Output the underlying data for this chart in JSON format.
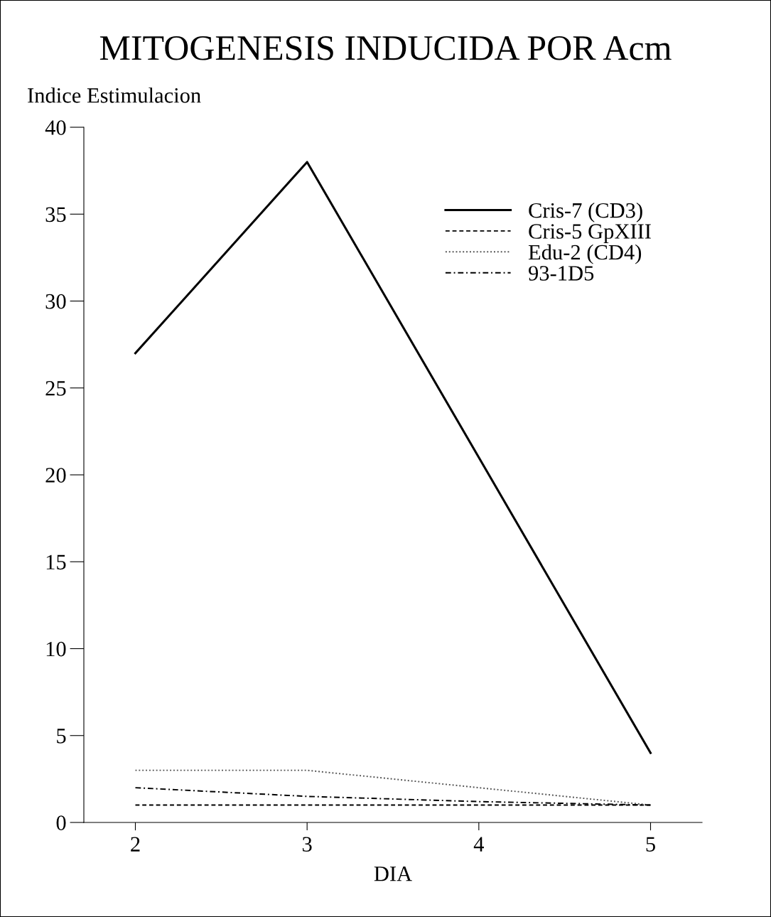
{
  "chart_data": {
    "type": "line",
    "title": "MITOGENESIS INDUCIDA POR Acm",
    "ylabel": "Indice Estimulacion",
    "xlabel": "DIA",
    "x": [
      2,
      3,
      4,
      5
    ],
    "series": [
      {
        "name": "Cris-7 (CD3)",
        "color": "#000000",
        "line_style": "solid",
        "values": [
          27,
          38,
          21,
          4
        ]
      },
      {
        "name": "Cris-5 GpXIII",
        "color": "#000000",
        "line_style": "dashed",
        "values": [
          1,
          1,
          1,
          1
        ]
      },
      {
        "name": "Edu-2 (CD4)",
        "color": "#555555",
        "line_style": "dotted",
        "values": [
          3,
          3,
          2,
          1
        ]
      },
      {
        "name": "93-1D5",
        "color": "#000000",
        "line_style": "dashdot",
        "values": [
          2,
          1.5,
          1.2,
          1
        ]
      }
    ],
    "xlim": [
      1.7,
      5.3
    ],
    "ylim": [
      0,
      40
    ],
    "xticks": [
      2,
      3,
      4,
      5
    ],
    "yticks": [
      0,
      5,
      10,
      15,
      20,
      25,
      30,
      35,
      40
    ],
    "legend": "top right",
    "grid": false,
    "marker": "none"
  }
}
